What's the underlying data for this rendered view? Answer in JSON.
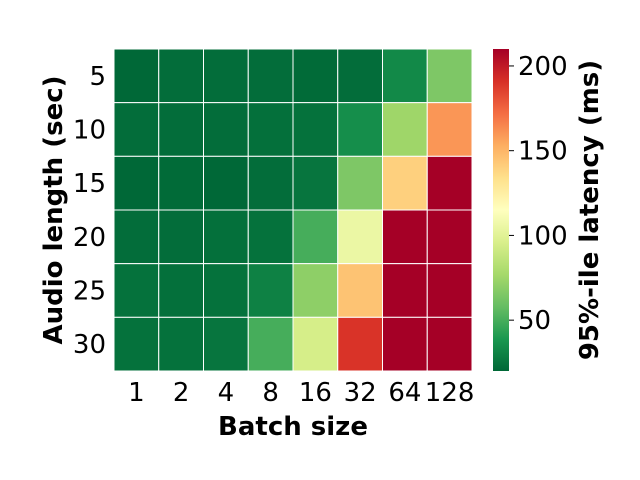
{
  "chart_data": {
    "type": "heatmap",
    "x_categories": [
      "1",
      "2",
      "4",
      "8",
      "16",
      "32",
      "64",
      "128"
    ],
    "y_categories": [
      "5",
      "10",
      "15",
      "20",
      "25",
      "30"
    ],
    "xlabel": "Batch size",
    "ylabel": "Audio length (sec)",
    "colorbar": {
      "label": "95%-ile latency (ms)",
      "range": [
        20,
        210
      ],
      "ticks": [
        50,
        100,
        150,
        200
      ],
      "colormap": "RdYlGn_r"
    },
    "values": [
      [
        20,
        22,
        22,
        22,
        21,
        22,
        33,
        65
      ],
      [
        22,
        22,
        22,
        23,
        24,
        35,
        75,
        160
      ],
      [
        20,
        21,
        20,
        22,
        25,
        65,
        140,
        210
      ],
      [
        22,
        22,
        23,
        24,
        50,
        105,
        210,
        210
      ],
      [
        24,
        23,
        24,
        30,
        70,
        145,
        210,
        210
      ],
      [
        24,
        24,
        25,
        50,
        95,
        190,
        210,
        210
      ]
    ],
    "grid": false,
    "legend": "right"
  }
}
